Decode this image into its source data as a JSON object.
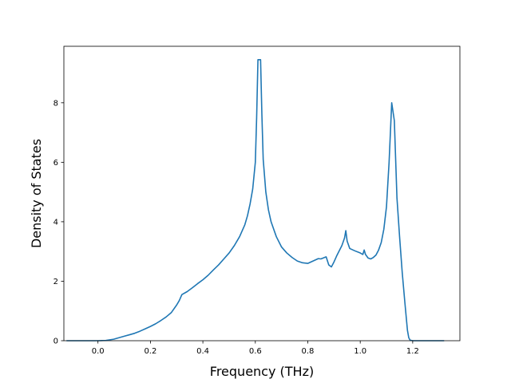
{
  "chart_data": {
    "type": "line",
    "title": "",
    "xlabel": "Frequency (THz)",
    "ylabel": "Density of States",
    "xlim": [
      -0.13,
      1.38
    ],
    "ylim": [
      0,
      9.9
    ],
    "xticks": [
      0.0,
      0.2,
      0.4,
      0.6,
      0.8,
      1.0,
      1.2
    ],
    "xtick_labels": [
      "0.0",
      "0.2",
      "0.4",
      "0.6",
      "0.8",
      "1.0",
      "1.2"
    ],
    "yticks": [
      0,
      2,
      4,
      6,
      8
    ],
    "ytick_labels": [
      "0",
      "2",
      "4",
      "6",
      "8"
    ],
    "grid": false,
    "legend": "none",
    "series": [
      {
        "color": "#1f77b4",
        "x": [
          -0.12,
          0.0,
          0.03,
          0.06,
          0.08,
          0.1,
          0.12,
          0.14,
          0.16,
          0.18,
          0.2,
          0.22,
          0.24,
          0.26,
          0.28,
          0.3,
          0.31,
          0.32,
          0.34,
          0.36,
          0.38,
          0.4,
          0.42,
          0.44,
          0.46,
          0.48,
          0.5,
          0.52,
          0.54,
          0.56,
          0.57,
          0.58,
          0.59,
          0.6,
          0.605,
          0.61,
          0.62,
          0.625,
          0.63,
          0.64,
          0.65,
          0.66,
          0.68,
          0.7,
          0.72,
          0.74,
          0.76,
          0.78,
          0.8,
          0.82,
          0.84,
          0.85,
          0.87,
          0.88,
          0.89,
          0.9,
          0.91,
          0.93,
          0.94,
          0.945,
          0.95,
          0.96,
          0.98,
          1.0,
          1.01,
          1.015,
          1.02,
          1.03,
          1.04,
          1.05,
          1.06,
          1.07,
          1.08,
          1.09,
          1.1,
          1.11,
          1.12,
          1.13,
          1.14,
          1.15,
          1.16,
          1.17,
          1.18,
          1.185,
          1.19,
          1.2,
          1.25,
          1.32
        ],
        "y": [
          0,
          0,
          0.01,
          0.05,
          0.1,
          0.15,
          0.2,
          0.25,
          0.32,
          0.4,
          0.48,
          0.57,
          0.68,
          0.8,
          0.95,
          1.2,
          1.35,
          1.55,
          1.65,
          1.78,
          1.92,
          2.05,
          2.2,
          2.38,
          2.55,
          2.75,
          2.95,
          3.2,
          3.5,
          3.9,
          4.2,
          4.6,
          5.1,
          6.0,
          7.5,
          9.45,
          9.45,
          7.6,
          6.1,
          5.0,
          4.4,
          4.0,
          3.5,
          3.15,
          2.95,
          2.8,
          2.68,
          2.62,
          2.6,
          2.68,
          2.76,
          2.75,
          2.82,
          2.55,
          2.48,
          2.65,
          2.85,
          3.2,
          3.45,
          3.7,
          3.35,
          3.1,
          3.02,
          2.95,
          2.9,
          3.05,
          2.9,
          2.78,
          2.75,
          2.8,
          2.88,
          3.05,
          3.3,
          3.75,
          4.5,
          6.0,
          8.0,
          7.4,
          4.8,
          3.5,
          2.3,
          1.3,
          0.35,
          0.1,
          0.02,
          0,
          0,
          0
        ]
      }
    ]
  }
}
